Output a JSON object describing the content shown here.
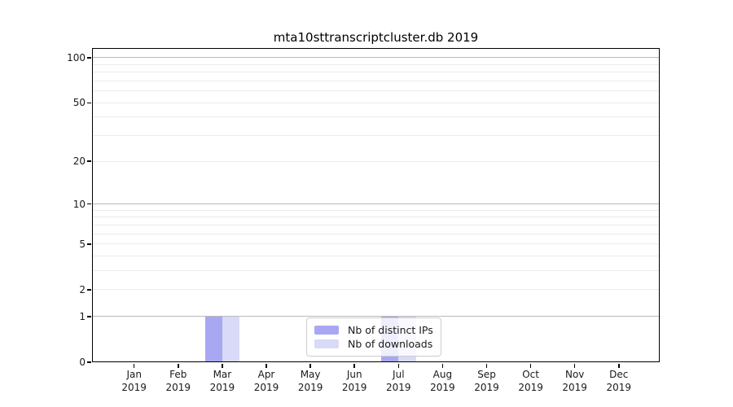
{
  "figure": {
    "background": "#ffffff"
  },
  "chart_data": {
    "type": "bar",
    "title": "mta10sttranscriptcluster.db 2019",
    "categories": [
      "Jan",
      "Feb",
      "Mar",
      "Apr",
      "May",
      "Jun",
      "Jul",
      "Aug",
      "Sep",
      "Oct",
      "Nov",
      "Dec"
    ],
    "category_year": "2019",
    "series": [
      {
        "name": "Nb of distinct IPs",
        "color": "#a8a8f2",
        "values": [
          0,
          0,
          1,
          0,
          0,
          0,
          1,
          0,
          0,
          0,
          0,
          0
        ]
      },
      {
        "name": "Nb of downloads",
        "color": "#d9d9f8",
        "values": [
          0,
          0,
          1,
          0,
          0,
          0,
          1,
          0,
          0,
          0,
          0,
          0
        ]
      }
    ],
    "xlabel": "",
    "ylabel": "",
    "yscale": "log1p",
    "ylim": [
      0,
      116
    ],
    "yticks": [
      0,
      1,
      2,
      5,
      10,
      20,
      50,
      100
    ],
    "grid": {
      "major_values": [
        1,
        10,
        100
      ],
      "minor_values": [
        2,
        3,
        4,
        5,
        6,
        7,
        8,
        9,
        20,
        30,
        40,
        50,
        60,
        70,
        80,
        90
      ],
      "major_color": "#bababa",
      "minor_color": "#ebebeb",
      "grid_on": true
    },
    "legend": {
      "position": "lower-center-inside"
    },
    "colors": {
      "axis": "#000000",
      "text": "#1a1a1a"
    }
  }
}
